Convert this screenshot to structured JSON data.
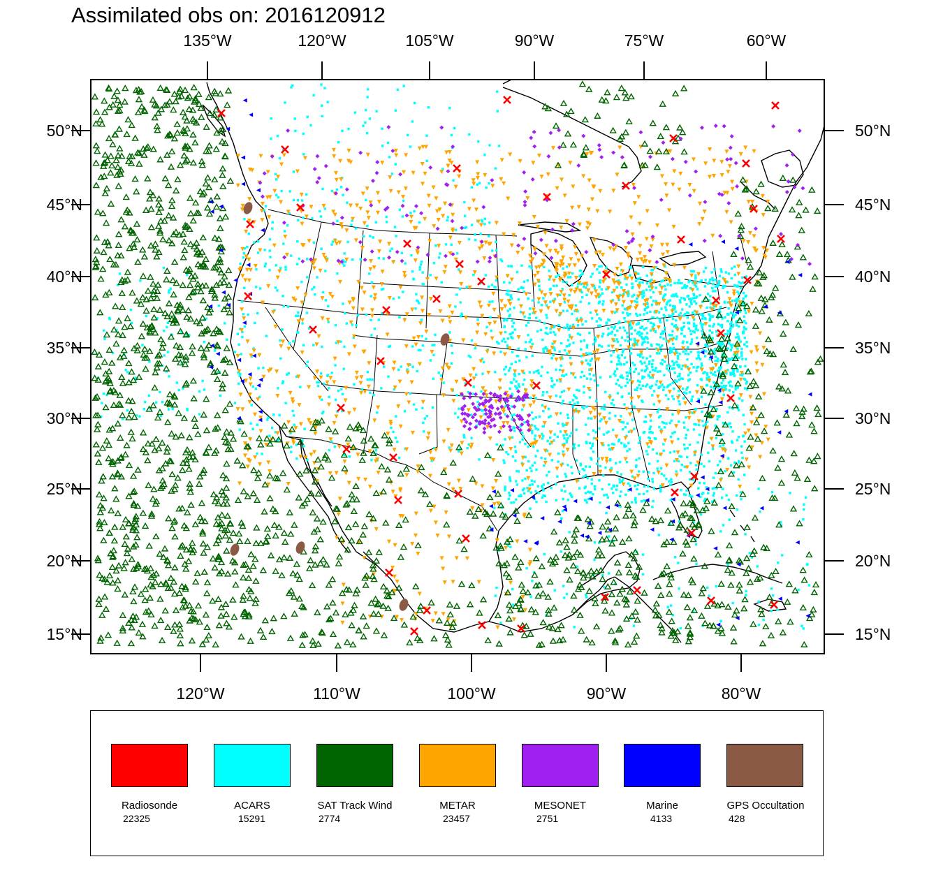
{
  "title": "Assimilated obs on: 2016120912",
  "axes": {
    "top_ticks": [
      "135°W",
      "120°W",
      "105°W",
      "90°W",
      "75°W",
      "60°W"
    ],
    "bottom_ticks": [
      "120°W",
      "110°W",
      "100°W",
      "90°W",
      "80°W"
    ],
    "left_ticks": [
      "50°N",
      "45°N",
      "40°N",
      "35°N",
      "30°N",
      "25°N",
      "20°N",
      "15°N"
    ],
    "right_ticks": [
      "50°N",
      "45°N",
      "40°N",
      "35°N",
      "30°N",
      "25°N",
      "20°N",
      "15°N"
    ]
  },
  "map": {
    "region": "North America (CONUS, Mexico, Gulf of Mexico, Caribbean, eastern Pacific, western Atlantic)",
    "coastline_color": "#000000",
    "state_borders": true
  },
  "legend": {
    "items": [
      {
        "name": "Radiosonde",
        "count": "22325",
        "color": "#ff0000",
        "marker": "x-cross"
      },
      {
        "name": "ACARS",
        "count": "15291",
        "color": "#00ffff",
        "marker": "square-dot"
      },
      {
        "name": "SAT Track Wind",
        "count": "2774",
        "color": "#006400",
        "marker": "open-triangle-up"
      },
      {
        "name": "METAR",
        "count": "23457",
        "color": "#ffa500",
        "marker": "triangle-down"
      },
      {
        "name": "MESONET",
        "count": "2751",
        "color": "#a020f0",
        "marker": "diamond"
      },
      {
        "name": "Marine",
        "count": "4133",
        "color": "#0000ff",
        "marker": "triangle-left"
      },
      {
        "name": "GPS Occultation",
        "count": "428",
        "color": "#8b5a45",
        "marker": "blob"
      }
    ]
  }
}
